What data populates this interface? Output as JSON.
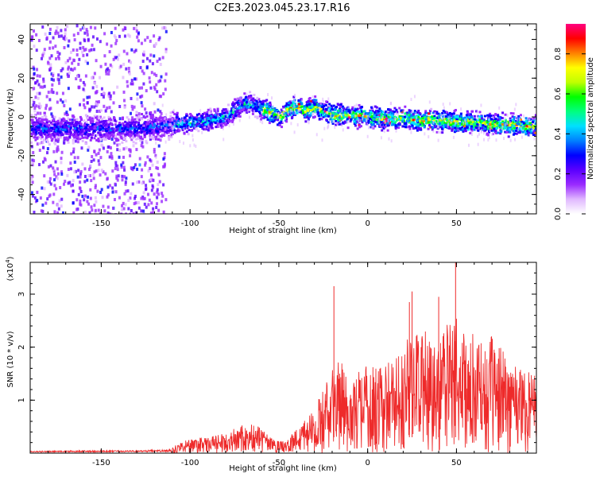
{
  "chart_data": [
    {
      "type": "heatmap",
      "title": "C2E3.2023.045.23.17.R16",
      "xlabel": "Height of straight line (km)",
      "ylabel": "Frequency (Hz)",
      "xlim": [
        -190,
        95
      ],
      "ylim": [
        -50,
        48
      ],
      "xticks": [
        -150,
        -100,
        -50,
        0,
        50
      ],
      "yticks": [
        -40,
        -20,
        0,
        20,
        40
      ],
      "colorbar": {
        "label": "Normalized spectral amplitude",
        "range": [
          0,
          0.95
        ],
        "ticks": [
          0.0,
          0.2,
          0.4,
          0.6,
          0.8
        ],
        "colors": [
          "#ffffff",
          "#e0b8ff",
          "#9a2bff",
          "#5a00ff",
          "#0000ff",
          "#0080ff",
          "#00e0ff",
          "#00ff80",
          "#00ff00",
          "#c0ff00",
          "#ffff00",
          "#ff8000",
          "#ff0000",
          "#ff0080"
        ]
      },
      "band_center": {
        "x": [
          -190,
          -170,
          -150,
          -130,
          -110,
          -100,
          -90,
          -80,
          -75,
          -70,
          -65,
          -55,
          -50,
          -45,
          -40,
          -35,
          -30,
          -25,
          -20,
          -10,
          0,
          10,
          20,
          30,
          40,
          50,
          60,
          70,
          80,
          90,
          95
        ],
        "y": [
          -6,
          -6,
          -6,
          -6,
          -4,
          -3,
          -2,
          0,
          4,
          7,
          6,
          2,
          0,
          4,
          5,
          3,
          5,
          2,
          1,
          1,
          0,
          -1,
          -1,
          -2,
          -2,
          -3,
          -3,
          -4,
          -4,
          -5,
          -5
        ]
      },
      "noise_region_x": [
        -190,
        -120
      ],
      "grid": false
    },
    {
      "type": "line",
      "title": "",
      "xlabel": "Height of straight line (km)",
      "ylabel": "SNR (10 * v/v)",
      "yscale_label": "(x10",
      "yscale_exp": "4",
      "yscale_close": ")",
      "xlim": [
        -190,
        95
      ],
      "ylim": [
        0,
        3.6
      ],
      "xticks": [
        -150,
        -100,
        -50,
        0,
        50
      ],
      "yticks": [
        1,
        2,
        3
      ],
      "color": "#ee2a2a",
      "envelope": {
        "x": [
          -190,
          -160,
          -130,
          -112,
          -105,
          -100,
          -90,
          -80,
          -75,
          -65,
          -60,
          -55,
          -50,
          -45,
          -40,
          -35,
          -30,
          -25,
          -20,
          -15,
          -10,
          -5,
          0,
          5,
          10,
          15,
          20,
          25,
          30,
          35,
          40,
          45,
          50,
          55,
          60,
          65,
          70,
          75,
          80,
          85,
          90,
          95
        ],
        "y": [
          0.04,
          0.05,
          0.05,
          0.07,
          0.22,
          0.28,
          0.3,
          0.38,
          0.52,
          0.55,
          0.5,
          0.3,
          0.22,
          0.25,
          0.48,
          0.75,
          0.85,
          1.2,
          1.6,
          1.9,
          1.2,
          1.55,
          1.8,
          1.6,
          1.7,
          1.9,
          2.05,
          2.4,
          2.55,
          2.1,
          2.3,
          2.5,
          2.6,
          2.3,
          2.25,
          2.1,
          2.2,
          2.0,
          1.9,
          1.75,
          1.7,
          1.6
        ]
      },
      "spikes": [
        {
          "x": -19,
          "y": 3.15
        },
        {
          "x": 49.5,
          "y": 3.62
        },
        {
          "x": 25,
          "y": 3.05
        },
        {
          "x": 40,
          "y": 2.95
        },
        {
          "x": 23.5,
          "y": 2.85
        }
      ],
      "grid": false
    }
  ]
}
